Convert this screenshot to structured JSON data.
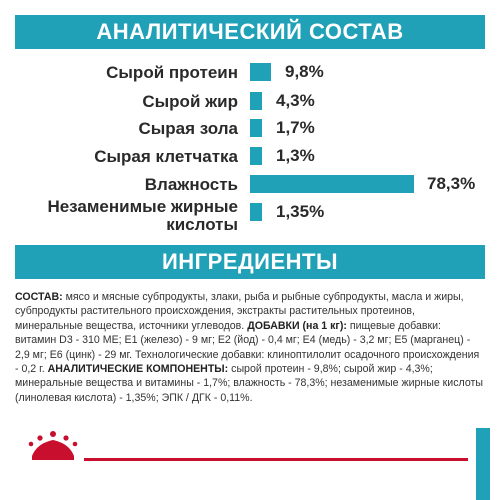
{
  "sections": {
    "analysis_title": "АНАЛИТИЧЕСКИЙ СОСТАВ",
    "ingredients_title": "ИНГРЕДИЕНТЫ"
  },
  "analysis": [
    {
      "label": "Сырой протеин",
      "value": "9,8%",
      "percent": 9.8
    },
    {
      "label": "Сырой жир",
      "value": "4,3%",
      "percent": 4.3
    },
    {
      "label": "Сырая зола",
      "value": "1,7%",
      "percent": 1.7
    },
    {
      "label": "Сырая клетчатка",
      "value": "1,3%",
      "percent": 1.3
    },
    {
      "label": "Влажность",
      "value": "78,3%",
      "percent": 78.3
    },
    {
      "label_line1": "Незаменимые жирные",
      "label_line2": "кислоты",
      "value": "1,35%",
      "percent": 1.35
    }
  ],
  "ingredients": {
    "composition_label": "СОСТАВ:",
    "composition_text": " мясо и мясные субпродукты, злаки, рыба и рыбные субпродукты, масла и жиры, субпродукты растительного происхождения, экстракты растительных протеинов, минеральные вещества, источники углеводов. ",
    "additives_label": "ДОБАВКИ (на 1 кг):",
    "additives_text": " пищевые добавки: витамин D3 - 310 МЕ; E1 (железо) - 9 мг; E2 (йод) - 0,4 мг; E4 (медь) - 3,2 мг; E5 (марганец) - 2,9 мг; E6 (цинк) - 29 мг. Технологические добавки: клиноптилолит осадочного происхождения - 0,2 г. ",
    "components_label": "АНАЛИТИЧЕСКИЕ КОМПОНЕНТЫ:",
    "components_text": " сырой протеин - 9,8%; сырой жир - 4,3%; минеральные вещества и витамины - 1,7%; влажность - 78,3%; незаменимые жирные кислоты (линолевая кислота) - 1,35%; ЭПК / ДГК - 0,11%."
  },
  "colors": {
    "accent": "#21a1b8",
    "brand_red": "#c8102e",
    "text": "#2a2a2a"
  },
  "footer": {
    "logo_icon": "royal-canin-crown-icon"
  }
}
